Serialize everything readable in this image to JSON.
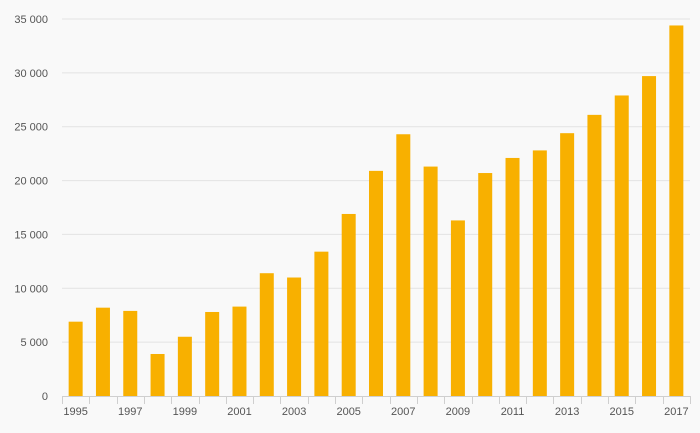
{
  "chart_data": {
    "type": "bar",
    "title": "",
    "xlabel": "",
    "ylabel": "",
    "categories": [
      "1995",
      "1996",
      "1997",
      "1998",
      "1999",
      "2000",
      "2001",
      "2002",
      "2003",
      "2004",
      "2005",
      "2006",
      "2007",
      "2008",
      "2009",
      "2010",
      "2011",
      "2012",
      "2013",
      "2014",
      "2015",
      "2016",
      "2017"
    ],
    "values": [
      6900,
      8200,
      7900,
      3900,
      5500,
      7800,
      8300,
      11400,
      11000,
      13400,
      16900,
      20900,
      24300,
      21300,
      16300,
      20700,
      22100,
      22800,
      24400,
      26100,
      27900,
      29700,
      34400
    ],
    "ylim": [
      0,
      35000
    ],
    "yticks": [
      0,
      5000,
      10000,
      15000,
      20000,
      25000,
      30000,
      35000
    ],
    "ytick_labels": [
      "0",
      "5 000",
      "10 000",
      "15 000",
      "20 000",
      "25 000",
      "30 000",
      "35 000"
    ],
    "xtick_labels_shown": [
      "1995",
      "",
      "1997",
      "",
      "1999",
      "",
      "2001",
      "",
      "2003",
      "",
      "2005",
      "",
      "2007",
      "",
      "2009",
      "",
      "2011",
      "",
      "2013",
      "",
      "2015",
      "",
      "2017"
    ],
    "grid": true,
    "legend": "none",
    "colors": {
      "bar": "#f8b000",
      "grid": "#e3e3e3",
      "axis": "#cfcfcf",
      "text": "#555555",
      "background": "#f9f9f9"
    }
  }
}
